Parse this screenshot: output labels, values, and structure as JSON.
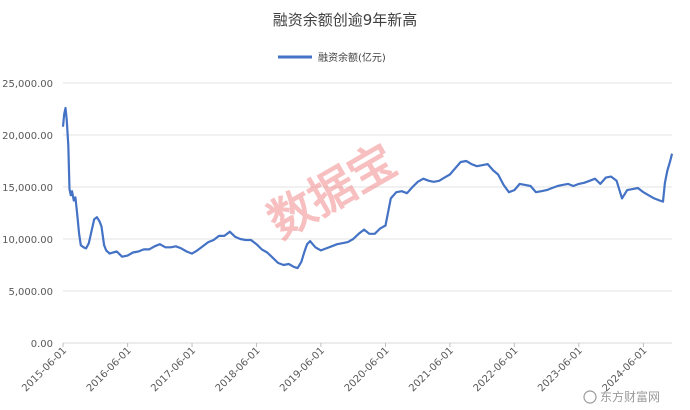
{
  "chart_data": {
    "type": "line",
    "title": "融资余额创逾9年新高",
    "xlabel": "",
    "ylabel": "",
    "ylim": [
      0,
      25000
    ],
    "y_ticks": [
      "0.00",
      "5,000.00",
      "10,000.00",
      "15,000.00",
      "20,000.00",
      "25,000.00"
    ],
    "x_ticks": [
      "2015-06-01",
      "2016-06-01",
      "2017-06-01",
      "2018-06-01",
      "2019-06-01",
      "2020-06-01",
      "2021-06-01",
      "2022-06-01",
      "2023-06-01",
      "2024-06-01"
    ],
    "legend_position": "top",
    "grid": "horizontal",
    "series": [
      {
        "name": "融资余额(亿元)",
        "color": "#4472c4",
        "points": [
          [
            "2015-06-01",
            20800
          ],
          [
            "2015-06-08",
            22000
          ],
          [
            "2015-06-15",
            22600
          ],
          [
            "2015-06-22",
            21500
          ],
          [
            "2015-07-01",
            19000
          ],
          [
            "2015-07-08",
            14800
          ],
          [
            "2015-07-15",
            14200
          ],
          [
            "2015-07-22",
            14600
          ],
          [
            "2015-08-01",
            13700
          ],
          [
            "2015-08-10",
            14000
          ],
          [
            "2015-08-20",
            12500
          ],
          [
            "2015-08-31",
            10500
          ],
          [
            "2015-09-10",
            9400
          ],
          [
            "2015-09-25",
            9200
          ],
          [
            "2015-10-10",
            9100
          ],
          [
            "2015-10-25",
            9600
          ],
          [
            "2015-11-10",
            10800
          ],
          [
            "2015-11-25",
            11900
          ],
          [
            "2015-12-10",
            12100
          ],
          [
            "2015-12-25",
            11700
          ],
          [
            "2016-01-05",
            11200
          ],
          [
            "2016-01-20",
            9400
          ],
          [
            "2016-02-01",
            8900
          ],
          [
            "2016-02-20",
            8600
          ],
          [
            "2016-03-10",
            8700
          ],
          [
            "2016-04-01",
            8800
          ],
          [
            "2016-05-01",
            8300
          ],
          [
            "2016-06-01",
            8400
          ],
          [
            "2016-07-01",
            8700
          ],
          [
            "2016-08-01",
            8800
          ],
          [
            "2016-09-01",
            9000
          ],
          [
            "2016-10-01",
            9000
          ],
          [
            "2016-11-01",
            9300
          ],
          [
            "2016-12-01",
            9500
          ],
          [
            "2017-01-01",
            9200
          ],
          [
            "2017-02-01",
            9200
          ],
          [
            "2017-03-01",
            9300
          ],
          [
            "2017-04-01",
            9100
          ],
          [
            "2017-05-01",
            8800
          ],
          [
            "2017-06-01",
            8600
          ],
          [
            "2017-07-01",
            8900
          ],
          [
            "2017-08-01",
            9300
          ],
          [
            "2017-09-01",
            9700
          ],
          [
            "2017-10-01",
            9900
          ],
          [
            "2017-11-01",
            10300
          ],
          [
            "2017-12-01",
            10300
          ],
          [
            "2018-01-01",
            10700
          ],
          [
            "2018-02-01",
            10200
          ],
          [
            "2018-03-01",
            10000
          ],
          [
            "2018-04-01",
            9900
          ],
          [
            "2018-05-01",
            9900
          ],
          [
            "2018-06-01",
            9500
          ],
          [
            "2018-07-01",
            9000
          ],
          [
            "2018-08-01",
            8700
          ],
          [
            "2018-09-01",
            8200
          ],
          [
            "2018-10-01",
            7700
          ],
          [
            "2018-11-01",
            7500
          ],
          [
            "2018-12-01",
            7600
          ],
          [
            "2019-01-01",
            7300
          ],
          [
            "2019-01-20",
            7200
          ],
          [
            "2019-02-10",
            7800
          ],
          [
            "2019-02-28",
            8800
          ],
          [
            "2019-03-15",
            9500
          ],
          [
            "2019-04-01",
            9800
          ],
          [
            "2019-05-01",
            9200
          ],
          [
            "2019-06-01",
            8900
          ],
          [
            "2019-07-01",
            9100
          ],
          [
            "2019-08-01",
            9300
          ],
          [
            "2019-09-01",
            9500
          ],
          [
            "2019-10-01",
            9600
          ],
          [
            "2019-11-01",
            9700
          ],
          [
            "2019-12-01",
            10000
          ],
          [
            "2020-01-01",
            10500
          ],
          [
            "2020-02-01",
            10900
          ],
          [
            "2020-03-01",
            10500
          ],
          [
            "2020-04-01",
            10500
          ],
          [
            "2020-05-01",
            11000
          ],
          [
            "2020-06-01",
            11300
          ],
          [
            "2020-07-01",
            13900
          ],
          [
            "2020-08-01",
            14500
          ],
          [
            "2020-09-01",
            14600
          ],
          [
            "2020-10-01",
            14400
          ],
          [
            "2020-11-01",
            15000
          ],
          [
            "2020-12-01",
            15500
          ],
          [
            "2021-01-01",
            15800
          ],
          [
            "2021-02-01",
            15600
          ],
          [
            "2021-03-01",
            15500
          ],
          [
            "2021-04-01",
            15600
          ],
          [
            "2021-05-01",
            15900
          ],
          [
            "2021-06-01",
            16200
          ],
          [
            "2021-07-01",
            16800
          ],
          [
            "2021-08-01",
            17400
          ],
          [
            "2021-09-01",
            17500
          ],
          [
            "2021-10-01",
            17200
          ],
          [
            "2021-11-01",
            17000
          ],
          [
            "2021-12-01",
            17100
          ],
          [
            "2022-01-01",
            17200
          ],
          [
            "2022-02-01",
            16600
          ],
          [
            "2022-03-01",
            16200
          ],
          [
            "2022-04-01",
            15200
          ],
          [
            "2022-05-01",
            14500
          ],
          [
            "2022-06-01",
            14700
          ],
          [
            "2022-07-01",
            15300
          ],
          [
            "2022-08-01",
            15200
          ],
          [
            "2022-09-01",
            15100
          ],
          [
            "2022-10-01",
            14500
          ],
          [
            "2022-11-01",
            14600
          ],
          [
            "2022-12-01",
            14700
          ],
          [
            "2023-01-01",
            14900
          ],
          [
            "2023-02-01",
            15100
          ],
          [
            "2023-03-01",
            15200
          ],
          [
            "2023-04-01",
            15300
          ],
          [
            "2023-05-01",
            15100
          ],
          [
            "2023-06-01",
            15300
          ],
          [
            "2023-07-01",
            15400
          ],
          [
            "2023-08-01",
            15600
          ],
          [
            "2023-09-01",
            15800
          ],
          [
            "2023-10-01",
            15300
          ],
          [
            "2023-11-01",
            15900
          ],
          [
            "2023-12-01",
            16000
          ],
          [
            "2024-01-01",
            15600
          ],
          [
            "2024-02-01",
            13900
          ],
          [
            "2024-03-01",
            14700
          ],
          [
            "2024-04-01",
            14800
          ],
          [
            "2024-05-01",
            14900
          ],
          [
            "2024-06-01",
            14500
          ],
          [
            "2024-07-01",
            14200
          ],
          [
            "2024-08-01",
            13900
          ],
          [
            "2024-09-01",
            13700
          ],
          [
            "2024-09-20",
            13600
          ],
          [
            "2024-10-01",
            15400
          ],
          [
            "2024-10-15",
            16600
          ],
          [
            "2024-10-31",
            17500
          ],
          [
            "2024-11-10",
            18200
          ]
        ]
      }
    ],
    "watermark": "数据宝",
    "source_label": "东方财富网"
  }
}
